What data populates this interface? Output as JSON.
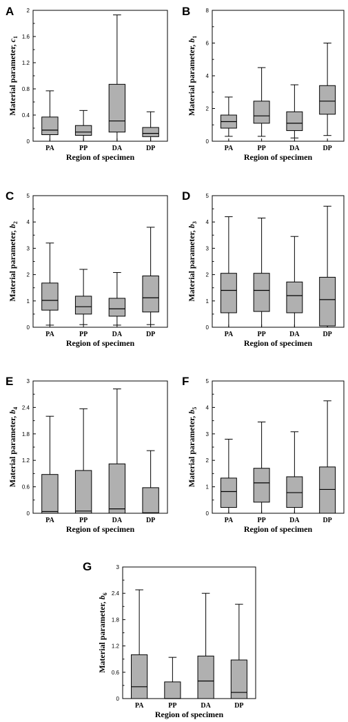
{
  "chart_data": [
    {
      "type": "box",
      "panel": "A",
      "xlabel": "Region of specimen",
      "ylabel": "Material parameter, ",
      "ylabel_symbol": "c",
      "ylabel_subscript": "1",
      "ylim": [
        0,
        2
      ],
      "yticks": [
        "0",
        "0.4",
        "0.8",
        "1.2",
        "1.6",
        "2"
      ],
      "categories": [
        "PA",
        "PP",
        "DA",
        "DP"
      ],
      "boxes": [
        {
          "min": 0.0,
          "q1": 0.1,
          "median": 0.17,
          "q3": 0.37,
          "max": 0.77
        },
        {
          "min": 0.0,
          "q1": 0.09,
          "median": 0.14,
          "q3": 0.24,
          "max": 0.47
        },
        {
          "min": 0.0,
          "q1": 0.14,
          "median": 0.31,
          "q3": 0.87,
          "max": 1.93
        },
        {
          "min": 0.0,
          "q1": 0.07,
          "median": 0.12,
          "q3": 0.21,
          "max": 0.45
        }
      ]
    },
    {
      "type": "box",
      "panel": "B",
      "xlabel": "Region of specimen",
      "ylabel": "Material parameter, ",
      "ylabel_symbol": "b",
      "ylabel_subscript": "1",
      "ylim": [
        0,
        8
      ],
      "yticks": [
        "0",
        "2",
        "4",
        "6",
        "8"
      ],
      "categories": [
        "PA",
        "PP",
        "DA",
        "DP"
      ],
      "boxes": [
        {
          "min": 0.3,
          "q1": 0.8,
          "median": 1.2,
          "q3": 1.6,
          "max": 2.7
        },
        {
          "min": 0.3,
          "q1": 1.1,
          "median": 1.55,
          "q3": 2.45,
          "max": 4.5
        },
        {
          "min": 0.2,
          "q1": 0.65,
          "median": 1.1,
          "q3": 1.8,
          "max": 3.45
        },
        {
          "min": 0.35,
          "q1": 1.65,
          "median": 2.45,
          "q3": 3.4,
          "max": 6.0
        }
      ]
    },
    {
      "type": "box",
      "panel": "C",
      "xlabel": "Region of specimen",
      "ylabel": "Material parameter, ",
      "ylabel_symbol": "b",
      "ylabel_subscript": "2",
      "ylim": [
        0,
        5
      ],
      "yticks": [
        "0",
        "1",
        "2",
        "3",
        "4",
        "5"
      ],
      "categories": [
        "PA",
        "PP",
        "DA",
        "DP"
      ],
      "boxes": [
        {
          "min": 0.08,
          "q1": 0.65,
          "median": 1.02,
          "q3": 1.68,
          "max": 3.2
        },
        {
          "min": 0.1,
          "q1": 0.5,
          "median": 0.78,
          "q3": 1.18,
          "max": 2.2
        },
        {
          "min": 0.08,
          "q1": 0.42,
          "median": 0.7,
          "q3": 1.1,
          "max": 2.08
        },
        {
          "min": 0.1,
          "q1": 0.58,
          "median": 1.12,
          "q3": 1.95,
          "max": 3.8
        }
      ]
    },
    {
      "type": "box",
      "panel": "D",
      "xlabel": "Region of specimen",
      "ylabel": "Material parameter, ",
      "ylabel_symbol": "b",
      "ylabel_subscript": "3",
      "ylim": [
        0,
        5
      ],
      "yticks": [
        "0",
        "1",
        "2",
        "3",
        "4",
        "5"
      ],
      "categories": [
        "PA",
        "PP",
        "DA",
        "DP"
      ],
      "boxes": [
        {
          "min": 0.0,
          "q1": 0.55,
          "median": 1.4,
          "q3": 2.05,
          "max": 4.2
        },
        {
          "min": 0.0,
          "q1": 0.6,
          "median": 1.4,
          "q3": 2.05,
          "max": 4.15
        },
        {
          "min": 0.0,
          "q1": 0.55,
          "median": 1.2,
          "q3": 1.72,
          "max": 3.45
        },
        {
          "min": 0.0,
          "q1": 0.05,
          "median": 1.05,
          "q3": 1.9,
          "max": 4.6
        }
      ]
    },
    {
      "type": "box",
      "panel": "E",
      "xlabel": "Region of specimen",
      "ylabel": "Material parameter, ",
      "ylabel_symbol": "b",
      "ylabel_subscript": "4",
      "ylim": [
        0,
        3
      ],
      "yticks": [
        "0",
        "0.6",
        "1.2",
        "1.8",
        "2.4",
        "3"
      ],
      "categories": [
        "PA",
        "PP",
        "DA",
        "DP"
      ],
      "boxes": [
        {
          "min": 0.0,
          "q1": 0.0,
          "median": 0.04,
          "q3": 0.88,
          "max": 2.2
        },
        {
          "min": 0.0,
          "q1": 0.0,
          "median": 0.05,
          "q3": 0.97,
          "max": 2.37
        },
        {
          "min": 0.0,
          "q1": 0.0,
          "median": 0.1,
          "q3": 1.12,
          "max": 2.82
        },
        {
          "min": 0.0,
          "q1": 0.0,
          "median": 0.01,
          "q3": 0.58,
          "max": 1.42
        }
      ]
    },
    {
      "type": "box",
      "panel": "F",
      "xlabel": "Region of specimen",
      "ylabel": "Material parameter, ",
      "ylabel_symbol": "b",
      "ylabel_subscript": "5",
      "ylim": [
        0,
        5
      ],
      "yticks": [
        "0",
        "1",
        "2",
        "3",
        "4",
        "5"
      ],
      "categories": [
        "PA",
        "PP",
        "DA",
        "DP"
      ],
      "boxes": [
        {
          "min": 0.0,
          "q1": 0.22,
          "median": 0.82,
          "q3": 1.33,
          "max": 2.8
        },
        {
          "min": 0.0,
          "q1": 0.42,
          "median": 1.15,
          "q3": 1.7,
          "max": 3.45
        },
        {
          "min": 0.0,
          "q1": 0.22,
          "median": 0.78,
          "q3": 1.38,
          "max": 3.08
        },
        {
          "min": 0.0,
          "q1": 0.0,
          "median": 0.9,
          "q3": 1.75,
          "max": 4.25
        }
      ]
    },
    {
      "type": "box",
      "panel": "G",
      "xlabel": "Region of specimen",
      "ylabel": "Material parameter, ",
      "ylabel_symbol": "b",
      "ylabel_subscript": "6",
      "ylim": [
        0,
        3
      ],
      "yticks": [
        "0",
        "0.6",
        "1.2",
        "1.8",
        "2.4",
        "3"
      ],
      "categories": [
        "PA",
        "PP",
        "DA",
        "DP"
      ],
      "boxes": [
        {
          "min": 0.0,
          "q1": 0.0,
          "median": 0.27,
          "q3": 1.0,
          "max": 2.48
        },
        {
          "min": 0.0,
          "q1": 0.0,
          "median": 0.0,
          "q3": 0.38,
          "max": 0.94
        },
        {
          "min": 0.0,
          "q1": 0.0,
          "median": 0.4,
          "q3": 0.97,
          "max": 2.4
        },
        {
          "min": 0.0,
          "q1": 0.0,
          "median": 0.14,
          "q3": 0.88,
          "max": 2.15
        }
      ]
    }
  ]
}
